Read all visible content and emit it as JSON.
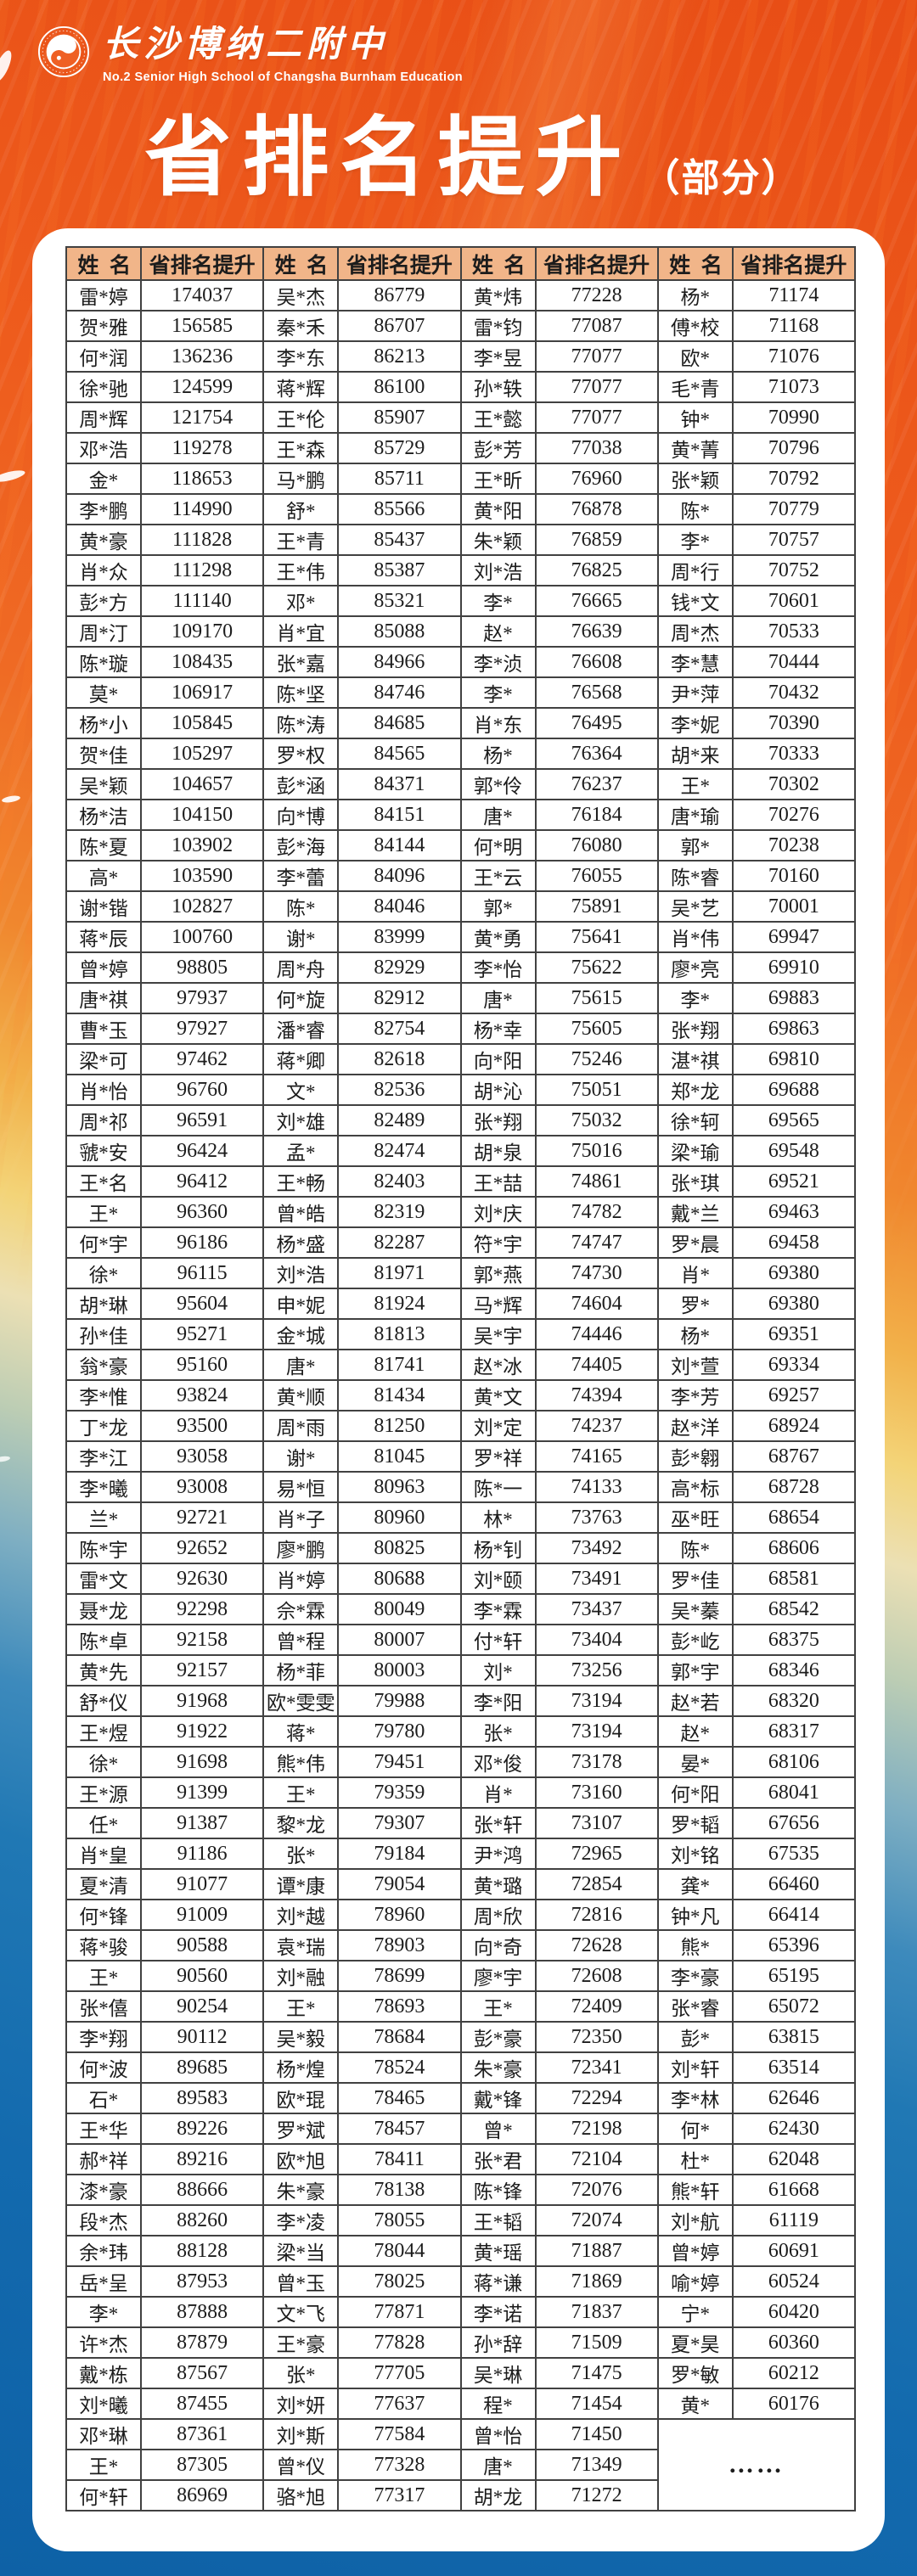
{
  "page": {
    "brand": {
      "school_name_zh": "长沙博纳二附中",
      "school_name_en": "No.2 Senior High School of Changsha Burnham Education"
    },
    "title": "省排名提升",
    "title_suffix": "（部分）",
    "ellipsis": "……"
  },
  "colors": {
    "accent_orange": "#ee5a1b",
    "deep_blue": "#1168ac",
    "header_bg": "#f1b589",
    "table_border": "#414141",
    "card_bg": "#ffffff",
    "title_text": "#ffffff"
  },
  "table": {
    "columns": [
      "姓名",
      "省排名提升",
      "姓名",
      "省排名提升",
      "姓名",
      "省排名提升",
      "姓名",
      "省排名提升"
    ],
    "rows": [
      [
        "雷*婷",
        "174037",
        "吴*杰",
        "86779",
        "黄*炜",
        "77228",
        "杨*",
        "71174"
      ],
      [
        "贺*雅",
        "156585",
        "秦*禾",
        "86707",
        "雷*钧",
        "77087",
        "傅*校",
        "71168"
      ],
      [
        "何*润",
        "136236",
        "李*东",
        "86213",
        "李*昱",
        "77077",
        "欧*",
        "71076"
      ],
      [
        "徐*驰",
        "124599",
        "蒋*辉",
        "86100",
        "孙*轶",
        "77077",
        "毛*青",
        "71073"
      ],
      [
        "周*辉",
        "121754",
        "王*伦",
        "85907",
        "王*懿",
        "77077",
        "钟*",
        "70990"
      ],
      [
        "邓*浩",
        "119278",
        "王*森",
        "85729",
        "彭*芳",
        "77038",
        "黄*菁",
        "70796"
      ],
      [
        "金*",
        "118653",
        "马*鹏",
        "85711",
        "王*昕",
        "76960",
        "张*颖",
        "70792"
      ],
      [
        "李*鹏",
        "114990",
        "舒*",
        "85566",
        "黄*阳",
        "76878",
        "陈*",
        "70779"
      ],
      [
        "黄*豪",
        "111828",
        "王*青",
        "85437",
        "朱*颖",
        "76859",
        "李*",
        "70757"
      ],
      [
        "肖*众",
        "111298",
        "王*伟",
        "85387",
        "刘*浩",
        "76825",
        "周*行",
        "70752"
      ],
      [
        "彭*方",
        "111140",
        "邓*",
        "85321",
        "李*",
        "76665",
        "钱*文",
        "70601"
      ],
      [
        "周*汀",
        "109170",
        "肖*宜",
        "85088",
        "赵*",
        "76639",
        "周*杰",
        "70533"
      ],
      [
        "陈*璇",
        "108435",
        "张*嘉",
        "84966",
        "李*浈",
        "76608",
        "李*慧",
        "70444"
      ],
      [
        "莫*",
        "106917",
        "陈*坚",
        "84746",
        "李*",
        "76568",
        "尹*萍",
        "70432"
      ],
      [
        "杨*小",
        "105845",
        "陈*涛",
        "84685",
        "肖*东",
        "76495",
        "李*妮",
        "70390"
      ],
      [
        "贺*佳",
        "105297",
        "罗*权",
        "84565",
        "杨*",
        "76364",
        "胡*来",
        "70333"
      ],
      [
        "吴*颖",
        "104657",
        "彭*涵",
        "84371",
        "郭*伶",
        "76237",
        "王*",
        "70302"
      ],
      [
        "杨*洁",
        "104150",
        "向*博",
        "84151",
        "唐*",
        "76184",
        "唐*瑜",
        "70276"
      ],
      [
        "陈*夏",
        "103902",
        "彭*海",
        "84144",
        "何*明",
        "76080",
        "郭*",
        "70238"
      ],
      [
        "高*",
        "103590",
        "李*蕾",
        "84096",
        "王*云",
        "76055",
        "陈*睿",
        "70160"
      ],
      [
        "谢*锴",
        "102827",
        "陈*",
        "84046",
        "郭*",
        "75891",
        "吴*艺",
        "70001"
      ],
      [
        "蒋*辰",
        "100760",
        "谢*",
        "83999",
        "黄*勇",
        "75641",
        "肖*伟",
        "69947"
      ],
      [
        "曾*婷",
        "98805",
        "周*舟",
        "82929",
        "李*怡",
        "75622",
        "廖*亮",
        "69910"
      ],
      [
        "唐*祺",
        "97937",
        "何*旋",
        "82912",
        "唐*",
        "75615",
        "李*",
        "69883"
      ],
      [
        "曹*玉",
        "97927",
        "潘*睿",
        "82754",
        "杨*幸",
        "75605",
        "张*翔",
        "69863"
      ],
      [
        "梁*可",
        "97462",
        "蒋*卿",
        "82618",
        "向*阳",
        "75246",
        "湛*祺",
        "69810"
      ],
      [
        "肖*怡",
        "96760",
        "文*",
        "82536",
        "胡*沁",
        "75051",
        "郑*龙",
        "69688"
      ],
      [
        "周*祁",
        "96591",
        "刘*雄",
        "82489",
        "张*翔",
        "75032",
        "徐*轲",
        "69565"
      ],
      [
        "虢*安",
        "96424",
        "孟*",
        "82474",
        "胡*泉",
        "75016",
        "梁*瑜",
        "69548"
      ],
      [
        "王*名",
        "96412",
        "王*畅",
        "82403",
        "王*喆",
        "74861",
        "张*琪",
        "69521"
      ],
      [
        "王*",
        "96360",
        "曾*皓",
        "82319",
        "刘*庆",
        "74782",
        "戴*兰",
        "69463"
      ],
      [
        "何*宇",
        "96186",
        "杨*盛",
        "82287",
        "符*宇",
        "74747",
        "罗*晨",
        "69458"
      ],
      [
        "徐*",
        "96115",
        "刘*浩",
        "81971",
        "郭*燕",
        "74730",
        "肖*",
        "69380"
      ],
      [
        "胡*琳",
        "95604",
        "申*妮",
        "81924",
        "马*辉",
        "74604",
        "罗*",
        "69380"
      ],
      [
        "孙*佳",
        "95271",
        "金*城",
        "81813",
        "吴*宇",
        "74446",
        "杨*",
        "69351"
      ],
      [
        "翁*豪",
        "95160",
        "唐*",
        "81741",
        "赵*冰",
        "74405",
        "刘*萱",
        "69334"
      ],
      [
        "李*惟",
        "93824",
        "黄*顺",
        "81434",
        "黄*文",
        "74394",
        "李*芳",
        "69257"
      ],
      [
        "丁*龙",
        "93500",
        "周*雨",
        "81250",
        "刘*定",
        "74237",
        "赵*洋",
        "68924"
      ],
      [
        "李*江",
        "93058",
        "谢*",
        "81045",
        "罗*祥",
        "74165",
        "彭*翱",
        "68767"
      ],
      [
        "李*曦",
        "93008",
        "易*恒",
        "80963",
        "陈*一",
        "74133",
        "高*标",
        "68728"
      ],
      [
        "兰*",
        "92721",
        "肖*子",
        "80960",
        "林*",
        "73763",
        "巫*旺",
        "68654"
      ],
      [
        "陈*宇",
        "92652",
        "廖*鹏",
        "80825",
        "杨*钊",
        "73492",
        "陈*",
        "68606"
      ],
      [
        "雷*文",
        "92630",
        "肖*婷",
        "80688",
        "刘*颐",
        "73491",
        "罗*佳",
        "68581"
      ],
      [
        "聂*龙",
        "92298",
        "佘*霖",
        "80049",
        "李*霖",
        "73437",
        "吴*蓁",
        "68542"
      ],
      [
        "陈*卓",
        "92158",
        "曾*程",
        "80007",
        "付*轩",
        "73404",
        "彭*屹",
        "68375"
      ],
      [
        "黄*先",
        "92157",
        "杨*菲",
        "80003",
        "刘*",
        "73256",
        "郭*宇",
        "68346"
      ],
      [
        "舒*仪",
        "91968",
        "欧*雯雯",
        "79988",
        "李*阳",
        "73194",
        "赵*若",
        "68320"
      ],
      [
        "王*煜",
        "91922",
        "蒋*",
        "79780",
        "张*",
        "73194",
        "赵*",
        "68317"
      ],
      [
        "徐*",
        "91698",
        "熊*伟",
        "79451",
        "邓*俊",
        "73178",
        "晏*",
        "68106"
      ],
      [
        "王*源",
        "91399",
        "王*",
        "79359",
        "肖*",
        "73160",
        "何*阳",
        "68041"
      ],
      [
        "任*",
        "91387",
        "黎*龙",
        "79307",
        "张*轩",
        "73107",
        "罗*韬",
        "67656"
      ],
      [
        "肖*皇",
        "91186",
        "张*",
        "79184",
        "尹*鸿",
        "72965",
        "刘*铭",
        "67535"
      ],
      [
        "夏*清",
        "91077",
        "谭*康",
        "79054",
        "黄*璐",
        "72854",
        "龚*",
        "66460"
      ],
      [
        "何*锋",
        "91009",
        "刘*越",
        "78960",
        "周*欣",
        "72816",
        "钟*凡",
        "66414"
      ],
      [
        "蒋*骏",
        "90588",
        "袁*瑞",
        "78903",
        "向*奇",
        "72628",
        "熊*",
        "65396"
      ],
      [
        "王*",
        "90560",
        "刘*融",
        "78699",
        "廖*宇",
        "72608",
        "李*豪",
        "65195"
      ],
      [
        "张*僖",
        "90254",
        "王*",
        "78693",
        "王*",
        "72409",
        "张*睿",
        "65072"
      ],
      [
        "李*翔",
        "90112",
        "吴*毅",
        "78684",
        "彭*豪",
        "72350",
        "彭*",
        "63815"
      ],
      [
        "何*波",
        "89685",
        "杨*煌",
        "78524",
        "朱*豪",
        "72341",
        "刘*轩",
        "63514"
      ],
      [
        "石*",
        "89583",
        "欧*琨",
        "78465",
        "戴*锋",
        "72294",
        "李*林",
        "62646"
      ],
      [
        "王*华",
        "89226",
        "罗*斌",
        "78457",
        "曾*",
        "72198",
        "何*",
        "62430"
      ],
      [
        "郝*祥",
        "89216",
        "欧*旭",
        "78411",
        "张*君",
        "72104",
        "杜*",
        "62048"
      ],
      [
        "漆*豪",
        "88666",
        "朱*豪",
        "78138",
        "陈*锋",
        "72076",
        "熊*轩",
        "61668"
      ],
      [
        "段*杰",
        "88260",
        "李*凌",
        "78055",
        "王*韬",
        "72074",
        "刘*航",
        "61119"
      ],
      [
        "余*玮",
        "88128",
        "梁*当",
        "78044",
        "黄*瑶",
        "71887",
        "曾*婷",
        "60691"
      ],
      [
        "岳*呈",
        "87953",
        "曾*玉",
        "78025",
        "蒋*谦",
        "71869",
        "喻*婷",
        "60524"
      ],
      [
        "李*",
        "87888",
        "文*飞",
        "77871",
        "李*诺",
        "71837",
        "宁*",
        "60420"
      ],
      [
        "许*杰",
        "87879",
        "王*豪",
        "77828",
        "孙*辞",
        "71509",
        "夏*昊",
        "60360"
      ],
      [
        "戴*栋",
        "87567",
        "张*",
        "77705",
        "吴*琳",
        "71475",
        "罗*敏",
        "60212"
      ],
      [
        "刘*曦",
        "87455",
        "刘*妍",
        "77637",
        "程*",
        "71454",
        "黄*",
        "60176"
      ],
      [
        "邓*琳",
        "87361",
        "刘*斯",
        "77584",
        "曾*怡",
        "71450"
      ],
      [
        "王*",
        "87305",
        "曾*仪",
        "77328",
        "唐*",
        "71349"
      ],
      [
        "何*轩",
        "86969",
        "骆*旭",
        "77317",
        "胡*龙",
        "71272"
      ]
    ]
  }
}
